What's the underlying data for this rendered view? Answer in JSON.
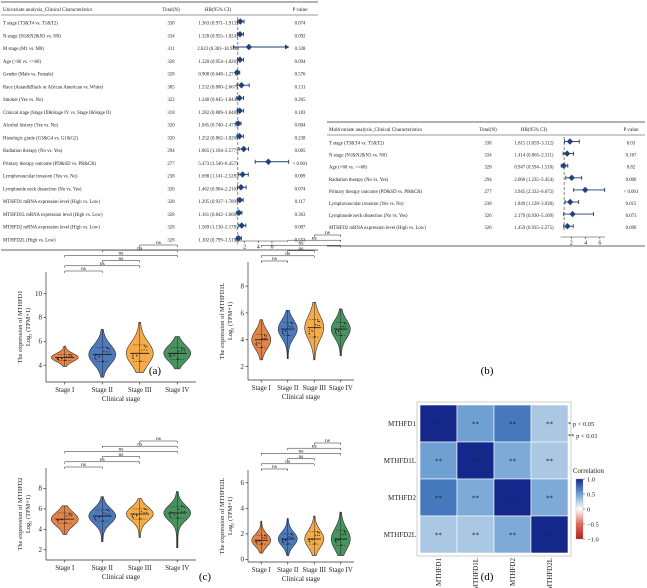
{
  "panels": {
    "a": {
      "label": "(a)",
      "header": {
        "title": "Univariate analysis_Clinical Characteristics",
        "total": "Total(N)",
        "hr": "HR(95% CI)",
        "p": "P value"
      },
      "rows": [
        {
          "name": "T stage (T3&T4 vs. T1&T2)",
          "n": "338",
          "hr_text": "1.363 (0.971–1.913)",
          "p": "0.074",
          "hr": 1.363,
          "lo": 0.971,
          "hi": 1.913
        },
        {
          "name": "N stage (N1&N2&N3 vs. N0)",
          "n": "334",
          "hr_text": "1.320 (0.955–1.824)",
          "p": "0.092",
          "hr": 1.32,
          "lo": 0.955,
          "hi": 1.824
        },
        {
          "name": "M stage (M1 vs. M0)",
          "n": "311",
          "hr_text": "2.623 (0.363–18.938)",
          "p": "0.338",
          "hr": 2.623,
          "lo": 0.363,
          "hi": 18.938
        },
        {
          "name": "Age (>60 vs. <=60)",
          "n": "328",
          "hr_text": "1.320 (0.954–1.826)",
          "p": "0.094",
          "hr": 1.32,
          "lo": 0.954,
          "hi": 1.826
        },
        {
          "name": "Gender (Male vs. Female)",
          "n": "328",
          "hr_text": "0.908 (0.648–1.273)",
          "p": "0.576",
          "hr": 0.908,
          "lo": 0.648,
          "hi": 1.273
        },
        {
          "name": "Race (Asian&Black or African American vs. White)",
          "n": "305",
          "hr_text": "1.532 (0.880–2.667)",
          "p": "0.131",
          "hr": 1.532,
          "lo": 0.88,
          "hi": 2.667
        },
        {
          "name": "Smoker (Yes vs. No)",
          "n": "322",
          "hr_text": "1.248 (0.845–1.844)",
          "p": "0.265",
          "hr": 1.248,
          "lo": 0.845,
          "hi": 1.844
        },
        {
          "name": "Clinical stage (Stage III&Stage IV vs. Stage I&Stage II)",
          "n": "318",
          "hr_text": "1.282 (0.889–1.848)",
          "p": "0.183",
          "hr": 1.282,
          "lo": 0.889,
          "hi": 1.848
        },
        {
          "name": "Alcohol history (Yes vs. No)",
          "n": "320",
          "hr_text": "1.045 (0.740–1.475)",
          "p": "0.804",
          "hr": 1.045,
          "lo": 0.74,
          "hi": 1.475
        },
        {
          "name": "Histologic grade (G3&G4 vs. G1&G2)",
          "n": "320",
          "hr_text": "1.252 (0.862–1.820)",
          "p": "0.238",
          "hr": 1.252,
          "lo": 0.862,
          "hi": 1.82
        },
        {
          "name": "Radiation therapy (No vs. Yes)",
          "n": "294",
          "hr_text": "1.865 (1.164–2.577)",
          "p": "0.005",
          "hr": 1.865,
          "lo": 1.164,
          "hi": 2.577
        },
        {
          "name": "Primary therapy outcome (PD&SD vs. PR&CR)",
          "n": "277",
          "hr_text": "5.473 (3.540–8.457)",
          "p": "< 0.001",
          "hr": 5.473,
          "lo": 3.54,
          "hi": 8.457
        },
        {
          "name": "Lymphovascular invasion (Yes vs. No)",
          "n": "238",
          "hr_text": "1.698 (1.141–2.528)",
          "p": "0.009",
          "hr": 1.698,
          "lo": 1.141,
          "hi": 2.528
        },
        {
          "name": "Lymphnode neck dissection (No vs. Yes)",
          "n": "326",
          "hr_text": "1.462 (0.964–2.216)",
          "p": "0.074",
          "hr": 1.462,
          "lo": 0.964,
          "hi": 2.216
        },
        {
          "name": "MTHFD1 mRNA expression level (High vs. Low)",
          "n": "328",
          "hr_text": "1.295 (0.937–1.789)",
          "p": "0.117",
          "hr": 1.295,
          "lo": 0.937,
          "hi": 1.789
        },
        {
          "name": "MTHFD1L mRNA expression level (High vs. Low)",
          "n": "328",
          "hr_text": "1.161 (0.842–1.600)",
          "p": "0.363",
          "hr": 1.161,
          "lo": 0.842,
          "hi": 1.6
        },
        {
          "name": "MTHFD2 mRNA expression level (High vs. Low)",
          "n": "328",
          "hr_text": "1.569 (1.130–2.178)",
          "p": "0.007",
          "hr": 1.569,
          "lo": 1.13,
          "hi": 2.178
        },
        {
          "name": "MTHFD2L (High vs. Low)",
          "n": "328",
          "hr_text": "1.102 (0.799–1.519)",
          "p": "0.553",
          "hr": 1.102,
          "lo": 0.799,
          "hi": 1.519
        }
      ],
      "axis_ticks": [
        "2",
        "4",
        "6"
      ],
      "axis_values": [
        2,
        4,
        6
      ],
      "axis_max": 8.5
    },
    "b": {
      "label": "(b)",
      "header": {
        "title": "Multivariate analysis_Clinical Characteristics",
        "total": "Total(N)",
        "hr": "HR(95% CI)",
        "p": "P value"
      },
      "rows": [
        {
          "name": "T stage (T3&T4 vs. T1&T2)",
          "n": "338",
          "hr_text": "1.815 (1.059–3.112)",
          "p": "0.03",
          "hr": 1.815,
          "lo": 1.059,
          "hi": 3.112
        },
        {
          "name": "N stage (N1&N2&N3 vs. N0)",
          "n": "334",
          "hr_text": "1.414 (0.865–2.311)",
          "p": "0.167",
          "hr": 1.414,
          "lo": 0.865,
          "hi": 2.311
        },
        {
          "name": "Age (>60 vs. <=60)",
          "n": "328",
          "hr_text": "0.947 (0.594–1.510)",
          "p": "0.82",
          "hr": 0.947,
          "lo": 0.594,
          "hi": 1.51
        },
        {
          "name": "Radiation therapy (No vs. Yes)",
          "n": "294",
          "hr_text": "2.066 (1.235–3.454)",
          "p": "0.006",
          "hr": 2.066,
          "lo": 1.235,
          "hi": 3.454
        },
        {
          "name": "Primary therapy outcome (PD&SD vs. PR&CR)",
          "n": "277",
          "hr_text": "3.945 (2.332–6.672)",
          "p": "< 0.001",
          "hr": 3.945,
          "lo": 2.332,
          "hi": 6.672
        },
        {
          "name": "Lymphovascular invasion (Yes vs. No)",
          "n": "238",
          "hr_text": "1.849 (1.128–3.030)",
          "p": "0.015",
          "hr": 1.849,
          "lo": 1.128,
          "hi": 3.03
        },
        {
          "name": "Lymphnode neck dissection (No vs. Yes)",
          "n": "326",
          "hr_text": "2.179 (0.930–5.109)",
          "p": "0.073",
          "hr": 2.179,
          "lo": 0.93,
          "hi": 5.109
        },
        {
          "name": "MTHFD2 mRNA expression level (High vs. Low)",
          "n": "326",
          "hr_text": "1.459 (0.935–2.275)",
          "p": "0.096",
          "hr": 1.459,
          "lo": 0.935,
          "hi": 2.275
        }
      ],
      "axis_ticks": [
        "2",
        "4",
        "6"
      ],
      "axis_values": [
        2,
        4,
        6
      ],
      "axis_max": 7.0
    },
    "c": {
      "label": "(c)",
      "xlabel": "Clinical stage",
      "categories": [
        "Stage I",
        "Stage II",
        "Stage III",
        "Stage IV"
      ],
      "sig": "ns",
      "colors": [
        "#e07b39",
        "#3f6fb5",
        "#f3a43a",
        "#3a8a52"
      ],
      "plots": [
        {
          "ylabel1": "The expression of MTHFD1",
          "ylabel2": "Log₂ (TPM+1)",
          "yticks": [
            "4",
            "6",
            "8",
            "10"
          ],
          "yvals": [
            4,
            6,
            8,
            10
          ],
          "ymin": 2.6,
          "ymax": 11.8,
          "violins": [
            {
              "min": 3.9,
              "q1": 4.4,
              "med": 4.65,
              "q3": 4.9,
              "max": 5.6
            },
            {
              "min": 3.0,
              "q1": 4.3,
              "med": 4.9,
              "q3": 5.5,
              "max": 7.0
            },
            {
              "min": 3.4,
              "q1": 4.3,
              "med": 5.0,
              "q3": 5.7,
              "max": 7.6
            },
            {
              "min": 3.7,
              "q1": 4.5,
              "med": 5.0,
              "q3": 5.5,
              "max": 6.4
            }
          ]
        },
        {
          "ylabel1": "The expression of MTHFD1L",
          "ylabel2": "Log₂ (TPM+1)",
          "yticks": [
            "2",
            "4",
            "6",
            "8"
          ],
          "yvals": [
            2,
            4,
            6,
            8
          ],
          "ymin": 1.0,
          "ymax": 9.8,
          "violins": [
            {
              "min": 2.5,
              "q1": 3.4,
              "med": 4.0,
              "q3": 4.4,
              "max": 5.5
            },
            {
              "min": 2.6,
              "q1": 4.3,
              "med": 4.8,
              "q3": 5.3,
              "max": 6.2
            },
            {
              "min": 2.5,
              "q1": 4.2,
              "med": 4.9,
              "q3": 5.5,
              "max": 6.8
            },
            {
              "min": 2.8,
              "q1": 4.3,
              "med": 4.8,
              "q3": 5.3,
              "max": 6.3
            }
          ]
        },
        {
          "ylabel1": "The expression of MTHFD2",
          "ylabel2": "Log₂ (TPM+1)",
          "yticks": [
            "2",
            "4",
            "6",
            "8"
          ],
          "yvals": [
            2,
            4,
            6,
            8
          ],
          "ymin": 1.0,
          "ymax": 10.0,
          "violins": [
            {
              "min": 3.5,
              "q1": 4.6,
              "med": 5.0,
              "q3": 5.6,
              "max": 6.3
            },
            {
              "min": 2.8,
              "q1": 4.8,
              "med": 5.3,
              "q3": 5.9,
              "max": 7.2
            },
            {
              "min": 3.2,
              "q1": 5.0,
              "med": 5.5,
              "q3": 6.0,
              "max": 7.0
            },
            {
              "min": 2.2,
              "q1": 5.1,
              "med": 5.6,
              "q3": 6.2,
              "max": 7.7
            }
          ]
        },
        {
          "ylabel1": "The expression of MTHFD2L",
          "ylabel2": "Log₂ (TPM+1)",
          "yticks": [
            "0",
            "2",
            "4",
            "6"
          ],
          "yvals": [
            0,
            2,
            4,
            6
          ],
          "ymin": -0.2,
          "ymax": 7.0,
          "violins": [
            {
              "min": 0.5,
              "q1": 1.2,
              "med": 1.5,
              "q3": 1.9,
              "max": 3.0
            },
            {
              "min": 0.3,
              "q1": 1.2,
              "med": 1.6,
              "q3": 2.0,
              "max": 3.2
            },
            {
              "min": 0.3,
              "q1": 1.2,
              "med": 1.6,
              "q3": 2.2,
              "max": 3.4
            },
            {
              "min": 0.3,
              "q1": 1.1,
              "med": 1.6,
              "q3": 2.3,
              "max": 3.7
            }
          ]
        }
      ]
    },
    "d": {
      "label": "(d)",
      "genes": [
        "MTHFD1",
        "MTHFD1L",
        "MTHFD2",
        "MTHFD2L"
      ],
      "matrix": [
        [
          1.0,
          0.5,
          0.65,
          0.3
        ],
        [
          0.5,
          1.0,
          0.45,
          0.3
        ],
        [
          0.65,
          0.45,
          1.0,
          0.45
        ],
        [
          0.3,
          0.3,
          0.45,
          1.0
        ]
      ],
      "cell_text": "**",
      "legend": {
        "sig1": "* p < 0.05",
        "sig2": "** p < 0.01",
        "title": "Correlation",
        "ticks": [
          "1.0",
          "0.5",
          "0",
          "−0.5",
          "−1.0"
        ],
        "values": [
          1.0,
          0.5,
          0,
          -0.5,
          -1.0
        ]
      }
    }
  }
}
